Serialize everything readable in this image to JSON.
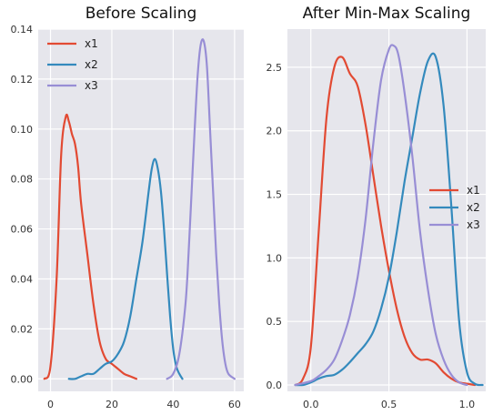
{
  "colors": {
    "x1": "#e24a33",
    "x2": "#348abd",
    "x3": "#988ed5"
  },
  "chart_data": [
    {
      "type": "line",
      "title": "Before Scaling",
      "xlabel": "",
      "ylabel": "",
      "xlim": [
        -4,
        63
      ],
      "ylim": [
        -0.005,
        0.14
      ],
      "xticks": [
        0,
        20,
        40,
        60
      ],
      "yticks": [
        0.0,
        0.02,
        0.04,
        0.06,
        0.08,
        0.1,
        0.12,
        0.14
      ],
      "ytick_labels": [
        "0.00",
        "0.02",
        "0.04",
        "0.06",
        "0.08",
        "0.10",
        "0.12",
        "0.14"
      ],
      "grid": true,
      "legend": "top-left",
      "series": [
        {
          "name": "x1",
          "color": "#e24a33",
          "x": [
            -2,
            0,
            2,
            3.5,
            5,
            6,
            7,
            8,
            9,
            10,
            12,
            14,
            16,
            18,
            20,
            22,
            24,
            26,
            28
          ],
          "y": [
            0.0,
            0.005,
            0.04,
            0.09,
            0.105,
            0.103,
            0.098,
            0.094,
            0.085,
            0.07,
            0.05,
            0.03,
            0.015,
            0.008,
            0.006,
            0.004,
            0.002,
            0.001,
            0.0
          ]
        },
        {
          "name": "x2",
          "color": "#348abd",
          "x": [
            6,
            8,
            10,
            12,
            14,
            16,
            18,
            20,
            22,
            24,
            26,
            28,
            30,
            32,
            33,
            34,
            35,
            36,
            37,
            38,
            39,
            40,
            41,
            42,
            43
          ],
          "y": [
            0.0,
            0.0,
            0.001,
            0.002,
            0.002,
            0.004,
            0.006,
            0.007,
            0.01,
            0.015,
            0.025,
            0.04,
            0.055,
            0.075,
            0.084,
            0.088,
            0.084,
            0.075,
            0.06,
            0.042,
            0.025,
            0.012,
            0.005,
            0.002,
            0.0
          ]
        },
        {
          "name": "x3",
          "color": "#988ed5",
          "x": [
            38,
            40,
            42,
            44,
            45,
            46,
            47,
            48,
            49,
            50,
            51,
            52,
            53,
            54,
            55,
            56,
            57,
            58,
            60
          ],
          "y": [
            0.0,
            0.002,
            0.01,
            0.03,
            0.05,
            0.075,
            0.1,
            0.122,
            0.134,
            0.135,
            0.125,
            0.1,
            0.075,
            0.05,
            0.03,
            0.015,
            0.006,
            0.002,
            0.0
          ]
        }
      ]
    },
    {
      "type": "line",
      "title": "After Min-Max Scaling",
      "xlabel": "",
      "ylabel": "",
      "xlim": [
        -0.15,
        1.12
      ],
      "ylim": [
        -0.05,
        2.8
      ],
      "xticks": [
        0.0,
        0.5,
        1.0
      ],
      "xtick_labels": [
        "0.0",
        "0.5",
        "1.0"
      ],
      "yticks": [
        0.0,
        0.5,
        1.0,
        1.5,
        2.0,
        2.5
      ],
      "ytick_labels": [
        "0.0",
        "0.5",
        "1.0",
        "1.5",
        "2.0",
        "2.5"
      ],
      "grid": true,
      "legend": "center-right",
      "series": [
        {
          "name": "x1",
          "color": "#e24a33",
          "x": [
            -0.1,
            -0.05,
            0.0,
            0.05,
            0.1,
            0.15,
            0.2,
            0.25,
            0.3,
            0.35,
            0.4,
            0.45,
            0.5,
            0.55,
            0.6,
            0.65,
            0.7,
            0.75,
            0.8,
            0.85,
            0.9,
            0.95,
            1.0,
            1.05
          ],
          "y": [
            0.0,
            0.05,
            0.3,
            1.2,
            2.1,
            2.5,
            2.58,
            2.45,
            2.35,
            2.05,
            1.65,
            1.25,
            0.9,
            0.6,
            0.38,
            0.25,
            0.2,
            0.2,
            0.17,
            0.1,
            0.05,
            0.02,
            0.01,
            0.0
          ]
        },
        {
          "name": "x2",
          "color": "#348abd",
          "x": [
            -0.1,
            -0.05,
            0.0,
            0.05,
            0.1,
            0.15,
            0.2,
            0.25,
            0.3,
            0.35,
            0.4,
            0.45,
            0.5,
            0.55,
            0.6,
            0.65,
            0.7,
            0.75,
            0.8,
            0.85,
            0.9,
            0.95,
            1.0,
            1.05,
            1.1
          ],
          "y": [
            0.0,
            0.0,
            0.02,
            0.05,
            0.07,
            0.08,
            0.12,
            0.18,
            0.25,
            0.32,
            0.42,
            0.6,
            0.85,
            1.2,
            1.6,
            1.95,
            2.3,
            2.55,
            2.58,
            2.2,
            1.4,
            0.5,
            0.1,
            0.01,
            0.0
          ]
        },
        {
          "name": "x3",
          "color": "#988ed5",
          "x": [
            -0.1,
            0.0,
            0.05,
            0.1,
            0.15,
            0.2,
            0.25,
            0.3,
            0.35,
            0.4,
            0.45,
            0.5,
            0.53,
            0.56,
            0.6,
            0.65,
            0.7,
            0.75,
            0.8,
            0.85,
            0.9,
            0.95,
            1.0
          ],
          "y": [
            0.0,
            0.03,
            0.07,
            0.12,
            0.2,
            0.35,
            0.55,
            0.85,
            1.3,
            1.9,
            2.4,
            2.64,
            2.67,
            2.6,
            2.3,
            1.8,
            1.2,
            0.75,
            0.4,
            0.2,
            0.08,
            0.02,
            0.0
          ]
        }
      ]
    }
  ]
}
